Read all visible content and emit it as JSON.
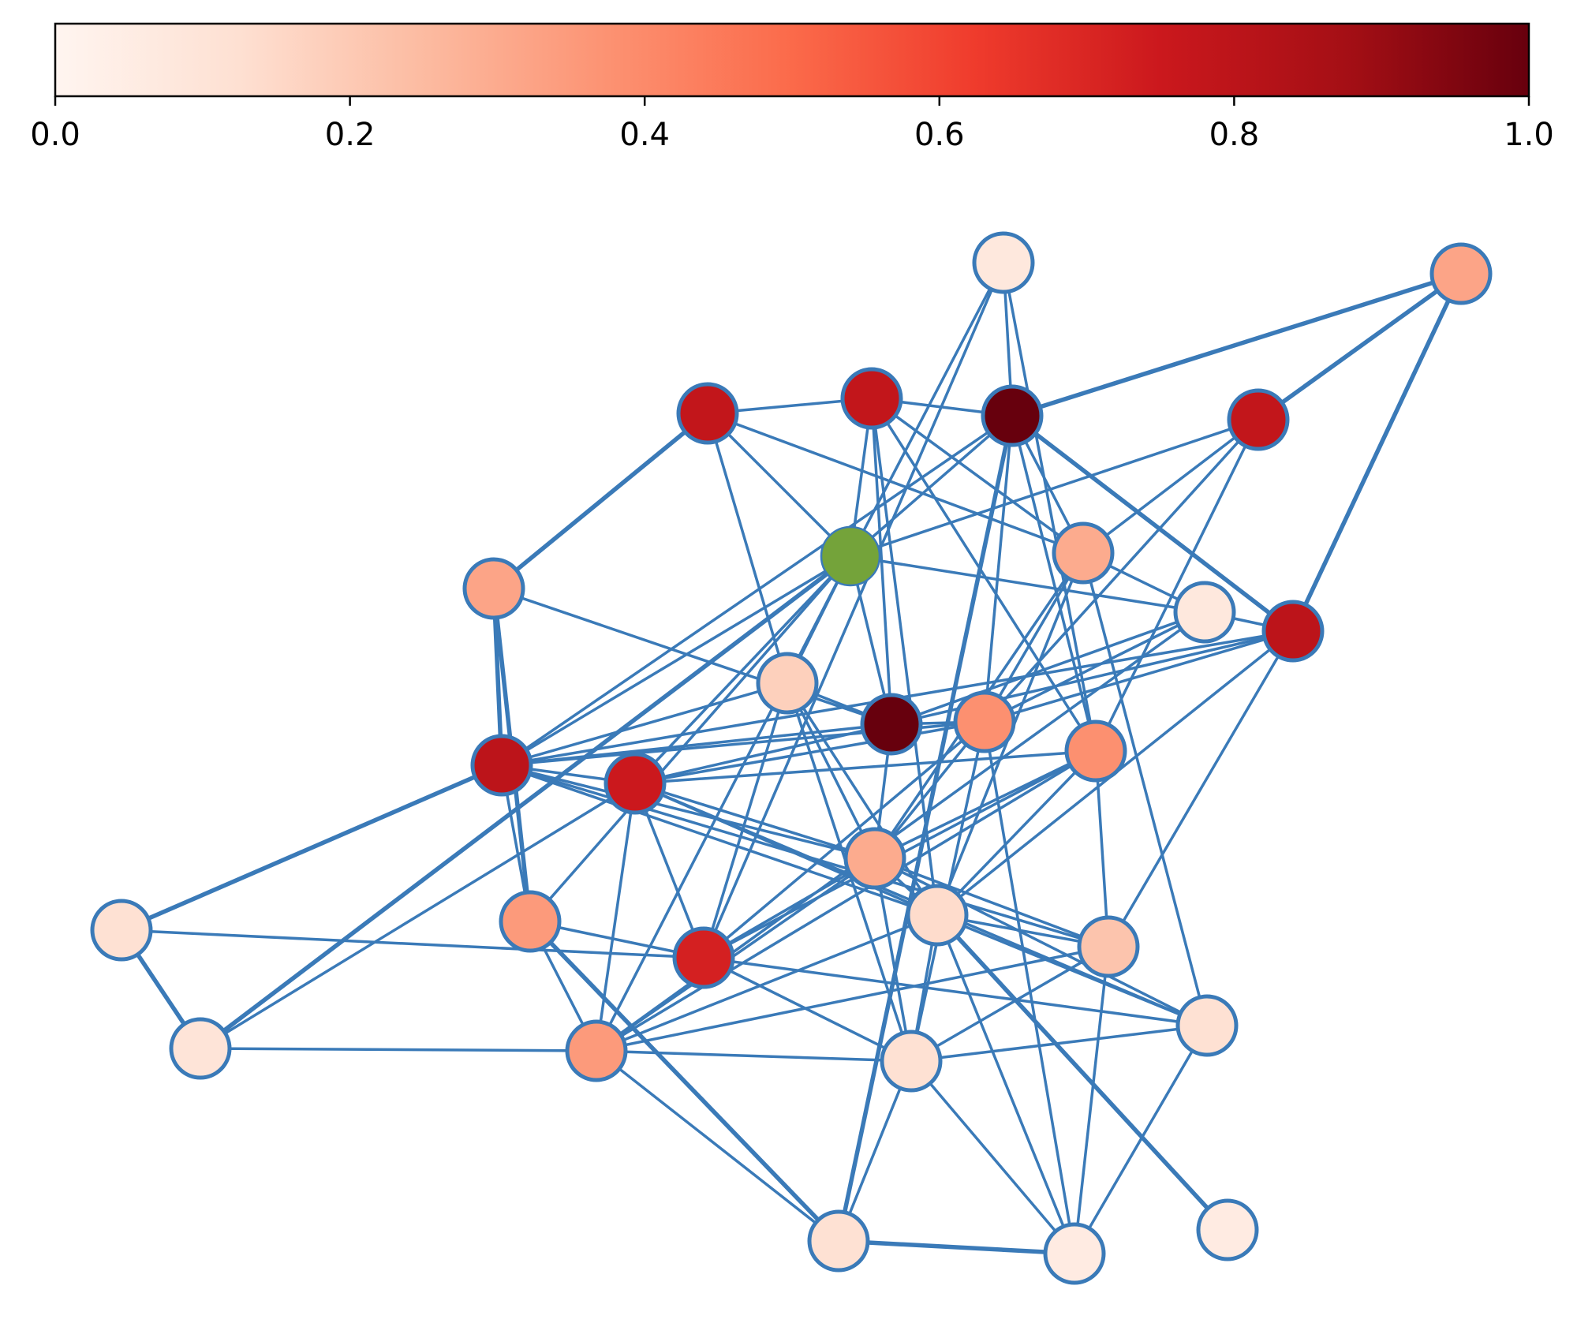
{
  "colorbar": {
    "colormap": "Reds",
    "stops": [
      "#fff5f0",
      "#fee0d2",
      "#fcbba1",
      "#fc9272",
      "#fb6a4a",
      "#ef3b2c",
      "#cb181d",
      "#a50f15",
      "#67000d"
    ],
    "range": [
      0.0,
      1.0
    ],
    "orientation": "horizontal",
    "position": "top",
    "ticks": [
      {
        "value": 0.0,
        "label": "0.0"
      },
      {
        "value": 0.2,
        "label": "0.2"
      },
      {
        "value": 0.4,
        "label": "0.4"
      },
      {
        "value": 0.6,
        "label": "0.6"
      },
      {
        "value": 0.8,
        "label": "0.8"
      },
      {
        "value": 1.0,
        "label": "1.0"
      }
    ]
  },
  "graph": {
    "edge_color": "#3a7ab8",
    "node_border_color": "#3a7ab8",
    "highlight_node_color": "#74a33a",
    "nodes": [
      {
        "id": "n0",
        "value": 0.08
      },
      {
        "id": "n1",
        "value": 0.32
      },
      {
        "id": "n2",
        "value": 0.78
      },
      {
        "id": "n3",
        "value": 0.78
      },
      {
        "id": "n4",
        "value": 1.0
      },
      {
        "id": "n5",
        "value": 0.78
      },
      {
        "id": "n6",
        "value": null,
        "highlight": true
      },
      {
        "id": "n7",
        "value": 0.32
      },
      {
        "id": "n8",
        "value": 0.3
      },
      {
        "id": "n9",
        "value": 0.08
      },
      {
        "id": "n10",
        "value": 0.8
      },
      {
        "id": "n11",
        "value": 0.18
      },
      {
        "id": "n12",
        "value": 1.0
      },
      {
        "id": "n13",
        "value": 0.38
      },
      {
        "id": "n14",
        "value": 0.38
      },
      {
        "id": "n15",
        "value": 0.8
      },
      {
        "id": "n16",
        "value": 0.75
      },
      {
        "id": "n17",
        "value": 0.3
      },
      {
        "id": "n18",
        "value": 0.12
      },
      {
        "id": "n19",
        "value": 0.14
      },
      {
        "id": "n20",
        "value": 0.35
      },
      {
        "id": "n21",
        "value": 0.72
      },
      {
        "id": "n22",
        "value": 0.22
      },
      {
        "id": "n23",
        "value": 0.12
      },
      {
        "id": "n24",
        "value": 0.1
      },
      {
        "id": "n25",
        "value": 0.35
      },
      {
        "id": "n26",
        "value": 0.12
      },
      {
        "id": "n27",
        "value": 0.12
      },
      {
        "id": "n28",
        "value": 0.06
      },
      {
        "id": "n29",
        "value": 0.06
      }
    ],
    "edges": [
      [
        "n0",
        "n4"
      ],
      [
        "n0",
        "n6"
      ],
      [
        "n0",
        "n26"
      ],
      [
        "n1",
        "n4"
      ],
      [
        "n1",
        "n3"
      ],
      [
        "n2",
        "n3"
      ],
      [
        "n2",
        "n7"
      ],
      [
        "n2",
        "n6"
      ],
      [
        "n2",
        "n8"
      ],
      [
        "n2",
        "n11"
      ],
      [
        "n3",
        "n4"
      ],
      [
        "n3",
        "n6"
      ],
      [
        "n3",
        "n8"
      ],
      [
        "n3",
        "n12"
      ],
      [
        "n3",
        "n13"
      ],
      [
        "n3",
        "n14"
      ],
      [
        "n4",
        "n6"
      ],
      [
        "n4",
        "n13"
      ],
      [
        "n4",
        "n14"
      ],
      [
        "n4",
        "n16"
      ],
      [
        "n4",
        "n19"
      ],
      [
        "n4",
        "n10"
      ],
      [
        "n5",
        "n8"
      ],
      [
        "n5",
        "n5x"
      ],
      [
        "n5",
        "n13"
      ],
      [
        "n5",
        "n26"
      ],
      [
        "n6",
        "n9"
      ],
      [
        "n6",
        "n12"
      ],
      [
        "n6",
        "n15"
      ],
      [
        "n6",
        "n16"
      ],
      [
        "n6",
        "n21"
      ],
      [
        "n6",
        "n20"
      ],
      [
        "n6",
        "n19"
      ],
      [
        "n7",
        "n12"
      ],
      [
        "n7",
        "n15"
      ],
      [
        "n7",
        "n21"
      ],
      [
        "n8",
        "n13"
      ],
      [
        "n8",
        "n9"
      ],
      [
        "n8",
        "n20"
      ],
      [
        "n8",
        "n23"
      ],
      [
        "n9",
        "n10"
      ],
      [
        "n9",
        "n12"
      ],
      [
        "n9",
        "n15"
      ],
      [
        "n9",
        "n13"
      ],
      [
        "n9",
        "n17"
      ],
      [
        "n10",
        "n13"
      ],
      [
        "n10",
        "n12"
      ],
      [
        "n10",
        "n19"
      ],
      [
        "n10",
        "n25"
      ],
      [
        "n10",
        "n18"
      ],
      [
        "n10",
        "n29"
      ],
      [
        "n11",
        "n15"
      ],
      [
        "n11",
        "n18"
      ],
      [
        "n11",
        "n14"
      ],
      [
        "n11",
        "n17"
      ],
      [
        "n11",
        "n21"
      ],
      [
        "n12",
        "n13"
      ],
      [
        "n12",
        "n14"
      ],
      [
        "n12",
        "n17"
      ],
      [
        "n12",
        "n22"
      ],
      [
        "n12",
        "n11"
      ],
      [
        "n13",
        "n15"
      ],
      [
        "n13",
        "n14"
      ],
      [
        "n13",
        "n21"
      ],
      [
        "n13",
        "n28"
      ],
      [
        "n13",
        "n23"
      ],
      [
        "n13",
        "n20"
      ],
      [
        "n14",
        "n19"
      ],
      [
        "n14",
        "n17"
      ],
      [
        "n14",
        "n22"
      ],
      [
        "n14",
        "n23"
      ],
      [
        "n15",
        "n16"
      ],
      [
        "n15",
        "n17"
      ],
      [
        "n15",
        "n22"
      ],
      [
        "n15",
        "n25"
      ],
      [
        "n15",
        "n24"
      ],
      [
        "n16",
        "n17"
      ],
      [
        "n16",
        "n19"
      ],
      [
        "n16",
        "n22"
      ],
      [
        "n16",
        "n18"
      ],
      [
        "n17",
        "n18"
      ],
      [
        "n17",
        "n19"
      ],
      [
        "n17",
        "n21"
      ],
      [
        "n17",
        "n22"
      ],
      [
        "n17",
        "n23"
      ],
      [
        "n17",
        "n29"
      ],
      [
        "n18",
        "n19"
      ],
      [
        "n18",
        "n24"
      ],
      [
        "n18",
        "n27"
      ],
      [
        "n19",
        "n20"
      ],
      [
        "n19",
        "n21"
      ],
      [
        "n19",
        "n22"
      ],
      [
        "n19",
        "n23"
      ],
      [
        "n19",
        "n25"
      ],
      [
        "n20",
        "n21"
      ],
      [
        "n20",
        "n25"
      ],
      [
        "n20",
        "n24"
      ],
      [
        "n20",
        "n27"
      ],
      [
        "n21",
        "n22"
      ],
      [
        "n21",
        "n24"
      ],
      [
        "n21",
        "n28"
      ],
      [
        "n21",
        "n26"
      ],
      [
        "n22",
        "n23"
      ],
      [
        "n22",
        "n24"
      ],
      [
        "n22",
        "n26"
      ],
      [
        "n23",
        "n25"
      ],
      [
        "n23",
        "n26"
      ],
      [
        "n23",
        "n28"
      ],
      [
        "n23",
        "n27"
      ],
      [
        "n24",
        "n26"
      ],
      [
        "n24",
        "n27"
      ],
      [
        "n25",
        "n26"
      ],
      [
        "n25",
        "n27"
      ],
      [
        "n27",
        "n28"
      ],
      [
        "n28",
        "n28x"
      ]
    ]
  }
}
